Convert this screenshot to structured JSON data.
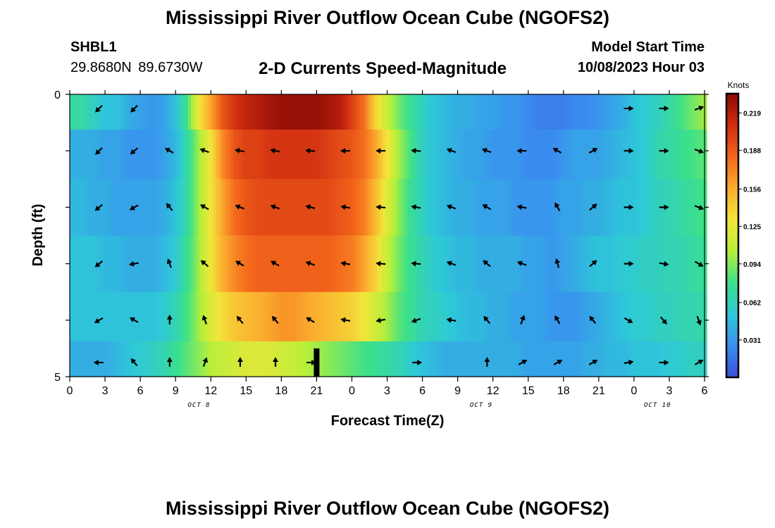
{
  "header": {
    "title": "Mississippi River Outflow Ocean Cube (NGOFS2)",
    "station_id": "SHBL1",
    "station_coords": "29.8680N  89.6730W",
    "subtitle": "2-D Currents Speed-Magnitude",
    "model_start_label": "Model Start Time",
    "model_start_value": "10/08/2023 Hour 03"
  },
  "footer": {
    "title": "Mississippi River Outflow Ocean Cube (NGOFS2)"
  },
  "chart_data": {
    "type": "heatmap",
    "title": "2-D Currents Speed-Magnitude",
    "xlabel": "Forecast Time(Z)",
    "ylabel": "Depth (ft)",
    "x_hours_since_oct8_00Z_range": [
      0,
      54
    ],
    "ylim": [
      0,
      5
    ],
    "y_inverted": true,
    "x_tick_labels": [
      "0",
      "3",
      "6",
      "9",
      "12",
      "15",
      "18",
      "21",
      "0",
      "3",
      "6",
      "9",
      "12",
      "15",
      "18",
      "21",
      "0",
      "3",
      "6"
    ],
    "y_tick_labels": [
      "0",
      "5"
    ],
    "date_labels": [
      "OCT 8",
      "OCT 9",
      "OCT 10"
    ],
    "date_label_hours": [
      11,
      35,
      50
    ],
    "colorbar": {
      "label": "Knots",
      "range": [
        0.0,
        0.235
      ],
      "tick_values": [
        0.031,
        0.062,
        0.094,
        0.125,
        0.156,
        0.188,
        0.219
      ],
      "tick_labels": [
        "0.031",
        "0.062",
        "0.094",
        "0.125",
        "0.156",
        "0.188",
        "0.219"
      ],
      "colormap": [
        "#3a4fd6",
        "#3a8ef0",
        "#2ec8d8",
        "#3be08a",
        "#b8ef3a",
        "#f2e53a",
        "#fbad2e",
        "#f3661c",
        "#d02c10",
        "#8a0a05"
      ]
    },
    "depth_layers": [
      0.25,
      1.0,
      2.0,
      3.0,
      4.0,
      4.75
    ],
    "speed_time_hours": [
      0,
      1,
      2,
      3,
      4,
      5,
      6,
      7,
      8,
      9,
      10,
      11,
      12,
      13,
      14,
      15,
      16,
      17,
      18,
      19,
      20,
      21,
      22,
      23,
      24,
      25,
      26,
      27,
      28,
      29,
      30,
      31,
      32,
      33,
      34,
      35,
      36,
      37,
      38,
      39,
      40,
      41,
      42,
      43,
      44,
      45,
      46,
      47,
      48,
      49,
      50,
      51,
      52,
      53,
      54
    ],
    "speed_knots_by_layer": [
      [
        0.07,
        0.07,
        0.06,
        0.05,
        0.05,
        0.04,
        0.035,
        0.03,
        0.035,
        0.05,
        0.08,
        0.13,
        0.16,
        0.19,
        0.205,
        0.215,
        0.22,
        0.225,
        0.23,
        0.23,
        0.23,
        0.23,
        0.225,
        0.22,
        0.2,
        0.18,
        0.14,
        0.11,
        0.09,
        0.075,
        0.06,
        0.05,
        0.045,
        0.04,
        0.04,
        0.035,
        0.035,
        0.03,
        0.03,
        0.025,
        0.02,
        0.02,
        0.02,
        0.025,
        0.025,
        0.03,
        0.035,
        0.04,
        0.05,
        0.055,
        0.06,
        0.07,
        0.08,
        0.09,
        0.1
      ],
      [
        0.04,
        0.04,
        0.04,
        0.035,
        0.035,
        0.03,
        0.03,
        0.03,
        0.035,
        0.045,
        0.07,
        0.1,
        0.13,
        0.17,
        0.19,
        0.2,
        0.2,
        0.205,
        0.205,
        0.205,
        0.205,
        0.205,
        0.2,
        0.195,
        0.19,
        0.18,
        0.16,
        0.13,
        0.1,
        0.08,
        0.06,
        0.05,
        0.045,
        0.04,
        0.035,
        0.035,
        0.03,
        0.03,
        0.03,
        0.025,
        0.025,
        0.025,
        0.03,
        0.035,
        0.035,
        0.035,
        0.04,
        0.045,
        0.05,
        0.055,
        0.065,
        0.07,
        0.075,
        0.08,
        0.085
      ],
      [
        0.045,
        0.045,
        0.04,
        0.04,
        0.035,
        0.035,
        0.035,
        0.035,
        0.04,
        0.05,
        0.07,
        0.1,
        0.13,
        0.16,
        0.18,
        0.19,
        0.195,
        0.195,
        0.195,
        0.195,
        0.195,
        0.195,
        0.195,
        0.19,
        0.185,
        0.175,
        0.15,
        0.12,
        0.095,
        0.075,
        0.06,
        0.05,
        0.045,
        0.04,
        0.04,
        0.035,
        0.035,
        0.035,
        0.03,
        0.03,
        0.03,
        0.03,
        0.035,
        0.035,
        0.04,
        0.04,
        0.045,
        0.05,
        0.05,
        0.055,
        0.06,
        0.065,
        0.07,
        0.075,
        0.08
      ],
      [
        0.05,
        0.05,
        0.05,
        0.045,
        0.045,
        0.04,
        0.04,
        0.04,
        0.045,
        0.055,
        0.075,
        0.1,
        0.13,
        0.155,
        0.17,
        0.18,
        0.185,
        0.185,
        0.185,
        0.185,
        0.185,
        0.185,
        0.185,
        0.18,
        0.175,
        0.16,
        0.14,
        0.11,
        0.09,
        0.075,
        0.065,
        0.055,
        0.05,
        0.045,
        0.045,
        0.04,
        0.04,
        0.04,
        0.04,
        0.035,
        0.035,
        0.03,
        0.035,
        0.04,
        0.045,
        0.05,
        0.05,
        0.055,
        0.055,
        0.06,
        0.06,
        0.065,
        0.065,
        0.07,
        0.075
      ],
      [
        0.05,
        0.05,
        0.05,
        0.05,
        0.05,
        0.05,
        0.05,
        0.05,
        0.055,
        0.065,
        0.08,
        0.1,
        0.12,
        0.135,
        0.145,
        0.15,
        0.155,
        0.16,
        0.165,
        0.165,
        0.16,
        0.155,
        0.15,
        0.145,
        0.14,
        0.13,
        0.115,
        0.1,
        0.085,
        0.075,
        0.065,
        0.06,
        0.055,
        0.05,
        0.045,
        0.045,
        0.04,
        0.04,
        0.035,
        0.035,
        0.035,
        0.03,
        0.03,
        0.03,
        0.035,
        0.04,
        0.045,
        0.05,
        0.055,
        0.055,
        0.06,
        0.06,
        0.065,
        0.065,
        0.07
      ],
      [
        0.04,
        0.04,
        0.04,
        0.04,
        0.045,
        0.05,
        0.055,
        0.06,
        0.065,
        0.075,
        0.085,
        0.095,
        0.105,
        0.11,
        0.115,
        0.12,
        0.12,
        0.12,
        0.115,
        0.11,
        0.105,
        0.1,
        0.095,
        0.09,
        0.085,
        0.08,
        0.075,
        0.07,
        0.065,
        0.055,
        0.05,
        0.045,
        0.04,
        0.04,
        0.04,
        0.04,
        0.04,
        0.04,
        0.04,
        0.035,
        0.035,
        0.035,
        0.035,
        0.035,
        0.04,
        0.04,
        0.045,
        0.045,
        0.05,
        0.05,
        0.05,
        0.055,
        0.055,
        0.06,
        0.06
      ]
    ],
    "vector_time_hours": [
      2.5,
      5.5,
      8.5,
      11.5,
      14.5,
      17.5,
      20.5,
      23.5,
      26.5,
      29.5,
      32.5,
      35.5,
      38.5,
      41.5,
      44.5,
      47.5,
      50.5,
      53.5
    ],
    "vector_direction_deg_by_layer": [
      [
        225,
        225,
        null,
        null,
        null,
        null,
        null,
        null,
        null,
        null,
        null,
        null,
        null,
        null,
        null,
        90,
        90,
        70
      ],
      [
        225,
        230,
        300,
        290,
        280,
        280,
        275,
        270,
        270,
        275,
        290,
        290,
        270,
        300,
        60,
        90,
        90,
        110
      ],
      [
        230,
        240,
        320,
        300,
        290,
        290,
        285,
        280,
        275,
        280,
        290,
        300,
        280,
        330,
        50,
        90,
        90,
        110
      ],
      [
        230,
        260,
        340,
        310,
        300,
        300,
        290,
        280,
        275,
        275,
        290,
        310,
        290,
        345,
        50,
        90,
        100,
        120
      ],
      [
        240,
        300,
        0,
        340,
        320,
        320,
        300,
        280,
        260,
        250,
        280,
        320,
        20,
        330,
        320,
        120,
        140,
        160
      ],
      [
        270,
        320,
        0,
        20,
        0,
        0,
        90,
        null,
        null,
        90,
        null,
        0,
        60,
        60,
        60,
        80,
        90,
        60
      ]
    ],
    "annotations": [
      {
        "type": "black-bar",
        "x_hour": 21,
        "depth_range": [
          4.5,
          5.0
        ]
      }
    ]
  }
}
